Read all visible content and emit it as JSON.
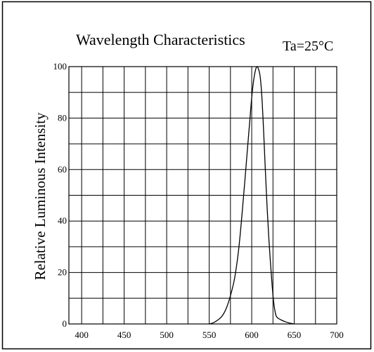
{
  "chart_data": {
    "type": "line",
    "title": "Wavelength Characteristics",
    "annotation": "Ta=25°C",
    "xlabel": "",
    "ylabel": "Relative Luminous Intensity",
    "xlim": [
      385,
      700
    ],
    "ylim": [
      0,
      100
    ],
    "x_ticks": [
      400,
      450,
      500,
      550,
      600,
      650,
      700
    ],
    "y_ticks": [
      0,
      20,
      40,
      60,
      80,
      100
    ],
    "grid": true,
    "series": [
      {
        "x": [
          550,
          555,
          560,
          565,
          570,
          575,
          580,
          585,
          590,
          595,
          598,
          600,
          602,
          604,
          606,
          608,
          610,
          612,
          614,
          616,
          618,
          620,
          622,
          624,
          626,
          628,
          630,
          635,
          640,
          645,
          650
        ],
        "y": [
          0,
          0.5,
          1.5,
          3,
          6,
          11,
          18,
          30,
          48,
          68,
          80,
          88,
          94,
          98,
          100,
          99,
          96,
          88,
          75,
          60,
          46,
          34,
          24,
          15,
          8,
          4,
          2.5,
          1.5,
          0.8,
          0.3,
          0
        ]
      }
    ]
  }
}
